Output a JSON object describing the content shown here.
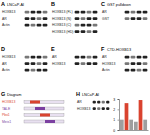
{
  "panels": [
    {
      "letter": "A",
      "title": "LNCaP-AI",
      "rows": [
        "HOXB13",
        "AR",
        "Actin"
      ]
    },
    {
      "letter": "B",
      "rows": [
        "HOXB13 (FL)",
        "HOXB13 (N)",
        "HOXB13 (C)",
        "HOXB13 (HD)"
      ]
    },
    {
      "letter": "C",
      "title": "GST pulldown",
      "rows": [
        "AR",
        "GST"
      ]
    },
    {
      "letter": "D",
      "rows": [
        "HOXB13",
        "AR",
        "Actin"
      ]
    },
    {
      "letter": "E",
      "rows": [
        "AR",
        "HOXB13"
      ]
    },
    {
      "letter": "F",
      "title": "CTD-HOXB13",
      "rows": [
        "AR",
        "HOXB13",
        "Actin"
      ]
    },
    {
      "letter": "G",
      "title": "Diagram",
      "rows": [
        "HOXB13",
        "TALE",
        "Pbx1",
        "Meis1"
      ]
    },
    {
      "letter": "H",
      "title": "LNCaP-AI",
      "rows": [
        "AR",
        "HOXB13"
      ]
    }
  ],
  "chart_data": {
    "type": "bar",
    "categories": [
      null,
      null,
      null,
      null,
      null,
      null
    ],
    "values": [
      1,
      2.6,
      1,
      0.8,
      2.9,
      1
    ],
    "colors": [
      "#9e9e9e",
      "#d9432f",
      "#9e9e9e",
      "#9e9e9e",
      "#d9432f",
      "#9e9e9e"
    ],
    "ylim": [
      0,
      3
    ],
    "yticks": [
      0,
      1,
      2,
      3
    ]
  }
}
